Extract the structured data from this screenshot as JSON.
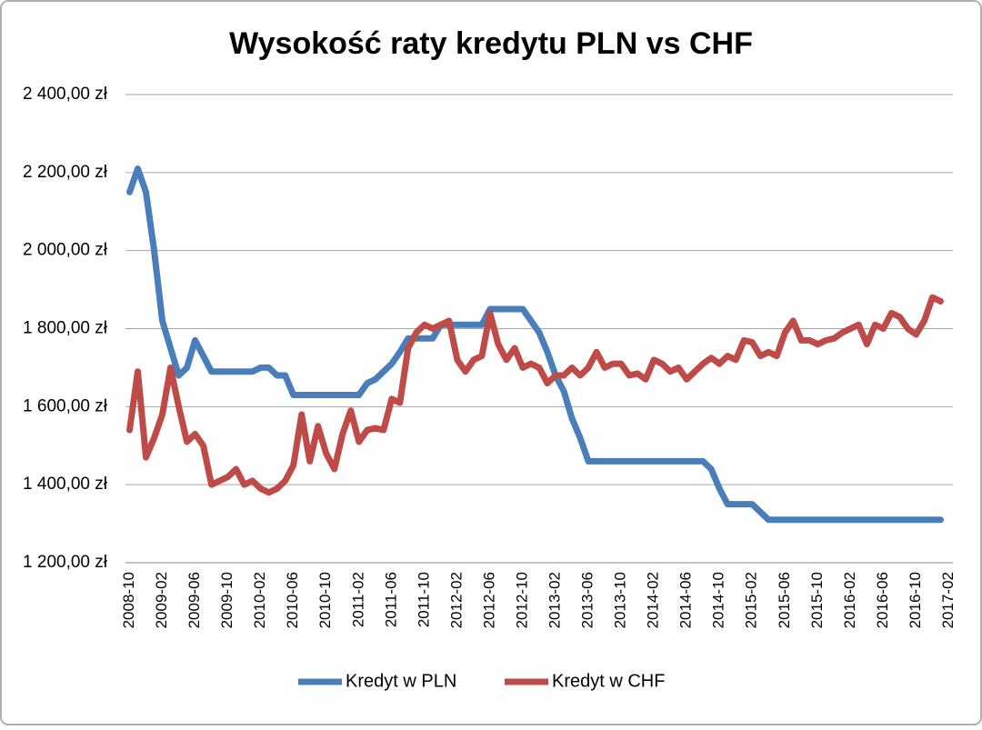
{
  "chart_data": {
    "type": "line",
    "title": "Wysokość raty kredytu PLN vs CHF",
    "categories": [
      "2008-10",
      null,
      null,
      null,
      "2009-02",
      null,
      null,
      null,
      "2009-06",
      null,
      null,
      null,
      "2009-10",
      null,
      null,
      null,
      "2010-02",
      null,
      null,
      null,
      "2010-06",
      null,
      null,
      null,
      "2010-10",
      null,
      null,
      null,
      "2011-02",
      null,
      null,
      null,
      "2011-06",
      null,
      null,
      null,
      "2011-10",
      null,
      null,
      null,
      "2012-02",
      null,
      null,
      null,
      "2012-06",
      null,
      null,
      null,
      "2012-10",
      null,
      null,
      null,
      "2013-02",
      null,
      null,
      null,
      "2013-06",
      null,
      null,
      null,
      "2013-10",
      null,
      null,
      null,
      "2014-02",
      null,
      null,
      null,
      "2014-06",
      null,
      null,
      null,
      "2014-10",
      null,
      null,
      null,
      "2015-02",
      null,
      null,
      null,
      "2015-06",
      null,
      null,
      null,
      "2015-10",
      null,
      null,
      null,
      "2016-02",
      null,
      null,
      null,
      "2016-06",
      null,
      null,
      null,
      "2016-10",
      null,
      null,
      null,
      "2017-02"
    ],
    "series": [
      {
        "name": "Kredyt w PLN",
        "color": "#4a7ebb",
        "values": [
          2150,
          2210,
          2150,
          2000,
          1820,
          1750,
          1680,
          1700,
          1770,
          1730,
          1690,
          1690,
          1690,
          1690,
          1690,
          1690,
          1700,
          1700,
          1680,
          1680,
          1630,
          1630,
          1630,
          1630,
          1630,
          1630,
          1630,
          1630,
          1630,
          1660,
          1670,
          1690,
          1710,
          1740,
          1775,
          1775,
          1775,
          1775,
          1810,
          1810,
          1810,
          1810,
          1810,
          1810,
          1850,
          1850,
          1850,
          1850,
          1850,
          1820,
          1790,
          1740,
          1680,
          1640,
          1570,
          1520,
          1460,
          1460,
          1460,
          1460,
          1460,
          1460,
          1460,
          1460,
          1460,
          1460,
          1460,
          1460,
          1460,
          1460,
          1460,
          1440,
          1390,
          1350,
          1350,
          1350,
          1350,
          1330,
          1310,
          1310,
          1310,
          1310,
          1310,
          1310,
          1310,
          1310,
          1310,
          1310,
          1310,
          1310,
          1310,
          1310,
          1310,
          1310,
          1310,
          1310,
          1310,
          1310,
          1310,
          1310,
          null
        ]
      },
      {
        "name": "Kredyt w CHF",
        "color": "#be4b48",
        "values": [
          1540,
          1690,
          1470,
          1520,
          1580,
          1700,
          1600,
          1510,
          1530,
          1500,
          1400,
          1410,
          1420,
          1440,
          1400,
          1410,
          1390,
          1380,
          1390,
          1410,
          1450,
          1580,
          1460,
          1550,
          1480,
          1440,
          1530,
          1590,
          1510,
          1540,
          1545,
          1540,
          1620,
          1610,
          1750,
          1790,
          1810,
          1800,
          1810,
          1820,
          1720,
          1690,
          1720,
          1730,
          1840,
          1760,
          1720,
          1750,
          1700,
          1710,
          1700,
          1660,
          1680,
          1680,
          1700,
          1680,
          1700,
          1740,
          1700,
          1710,
          1710,
          1680,
          1685,
          1670,
          1720,
          1710,
          1690,
          1700,
          1670,
          1690,
          1710,
          1725,
          1710,
          1730,
          1720,
          1770,
          1765,
          1730,
          1740,
          1730,
          1790,
          1820,
          1770,
          1770,
          1760,
          1770,
          1775,
          1790,
          1800,
          1810,
          1760,
          1810,
          1800,
          1840,
          1830,
          1800,
          1785,
          1820,
          1880,
          1870,
          null
        ]
      }
    ],
    "ylim": [
      1200,
      2400
    ],
    "yticks": [
      {
        "value": 1200,
        "label": "1 200,00 zł"
      },
      {
        "value": 1400,
        "label": "1 400,00 zł"
      },
      {
        "value": 1600,
        "label": "1 600,00 zł"
      },
      {
        "value": 1800,
        "label": "1 800,00 zł"
      },
      {
        "value": 2000,
        "label": "2 000,00 zł"
      },
      {
        "value": 2200,
        "label": "2 200,00 zł"
      },
      {
        "value": 2400,
        "label": "2 400,00 zł"
      }
    ],
    "grid": true,
    "legend": "bottom"
  }
}
